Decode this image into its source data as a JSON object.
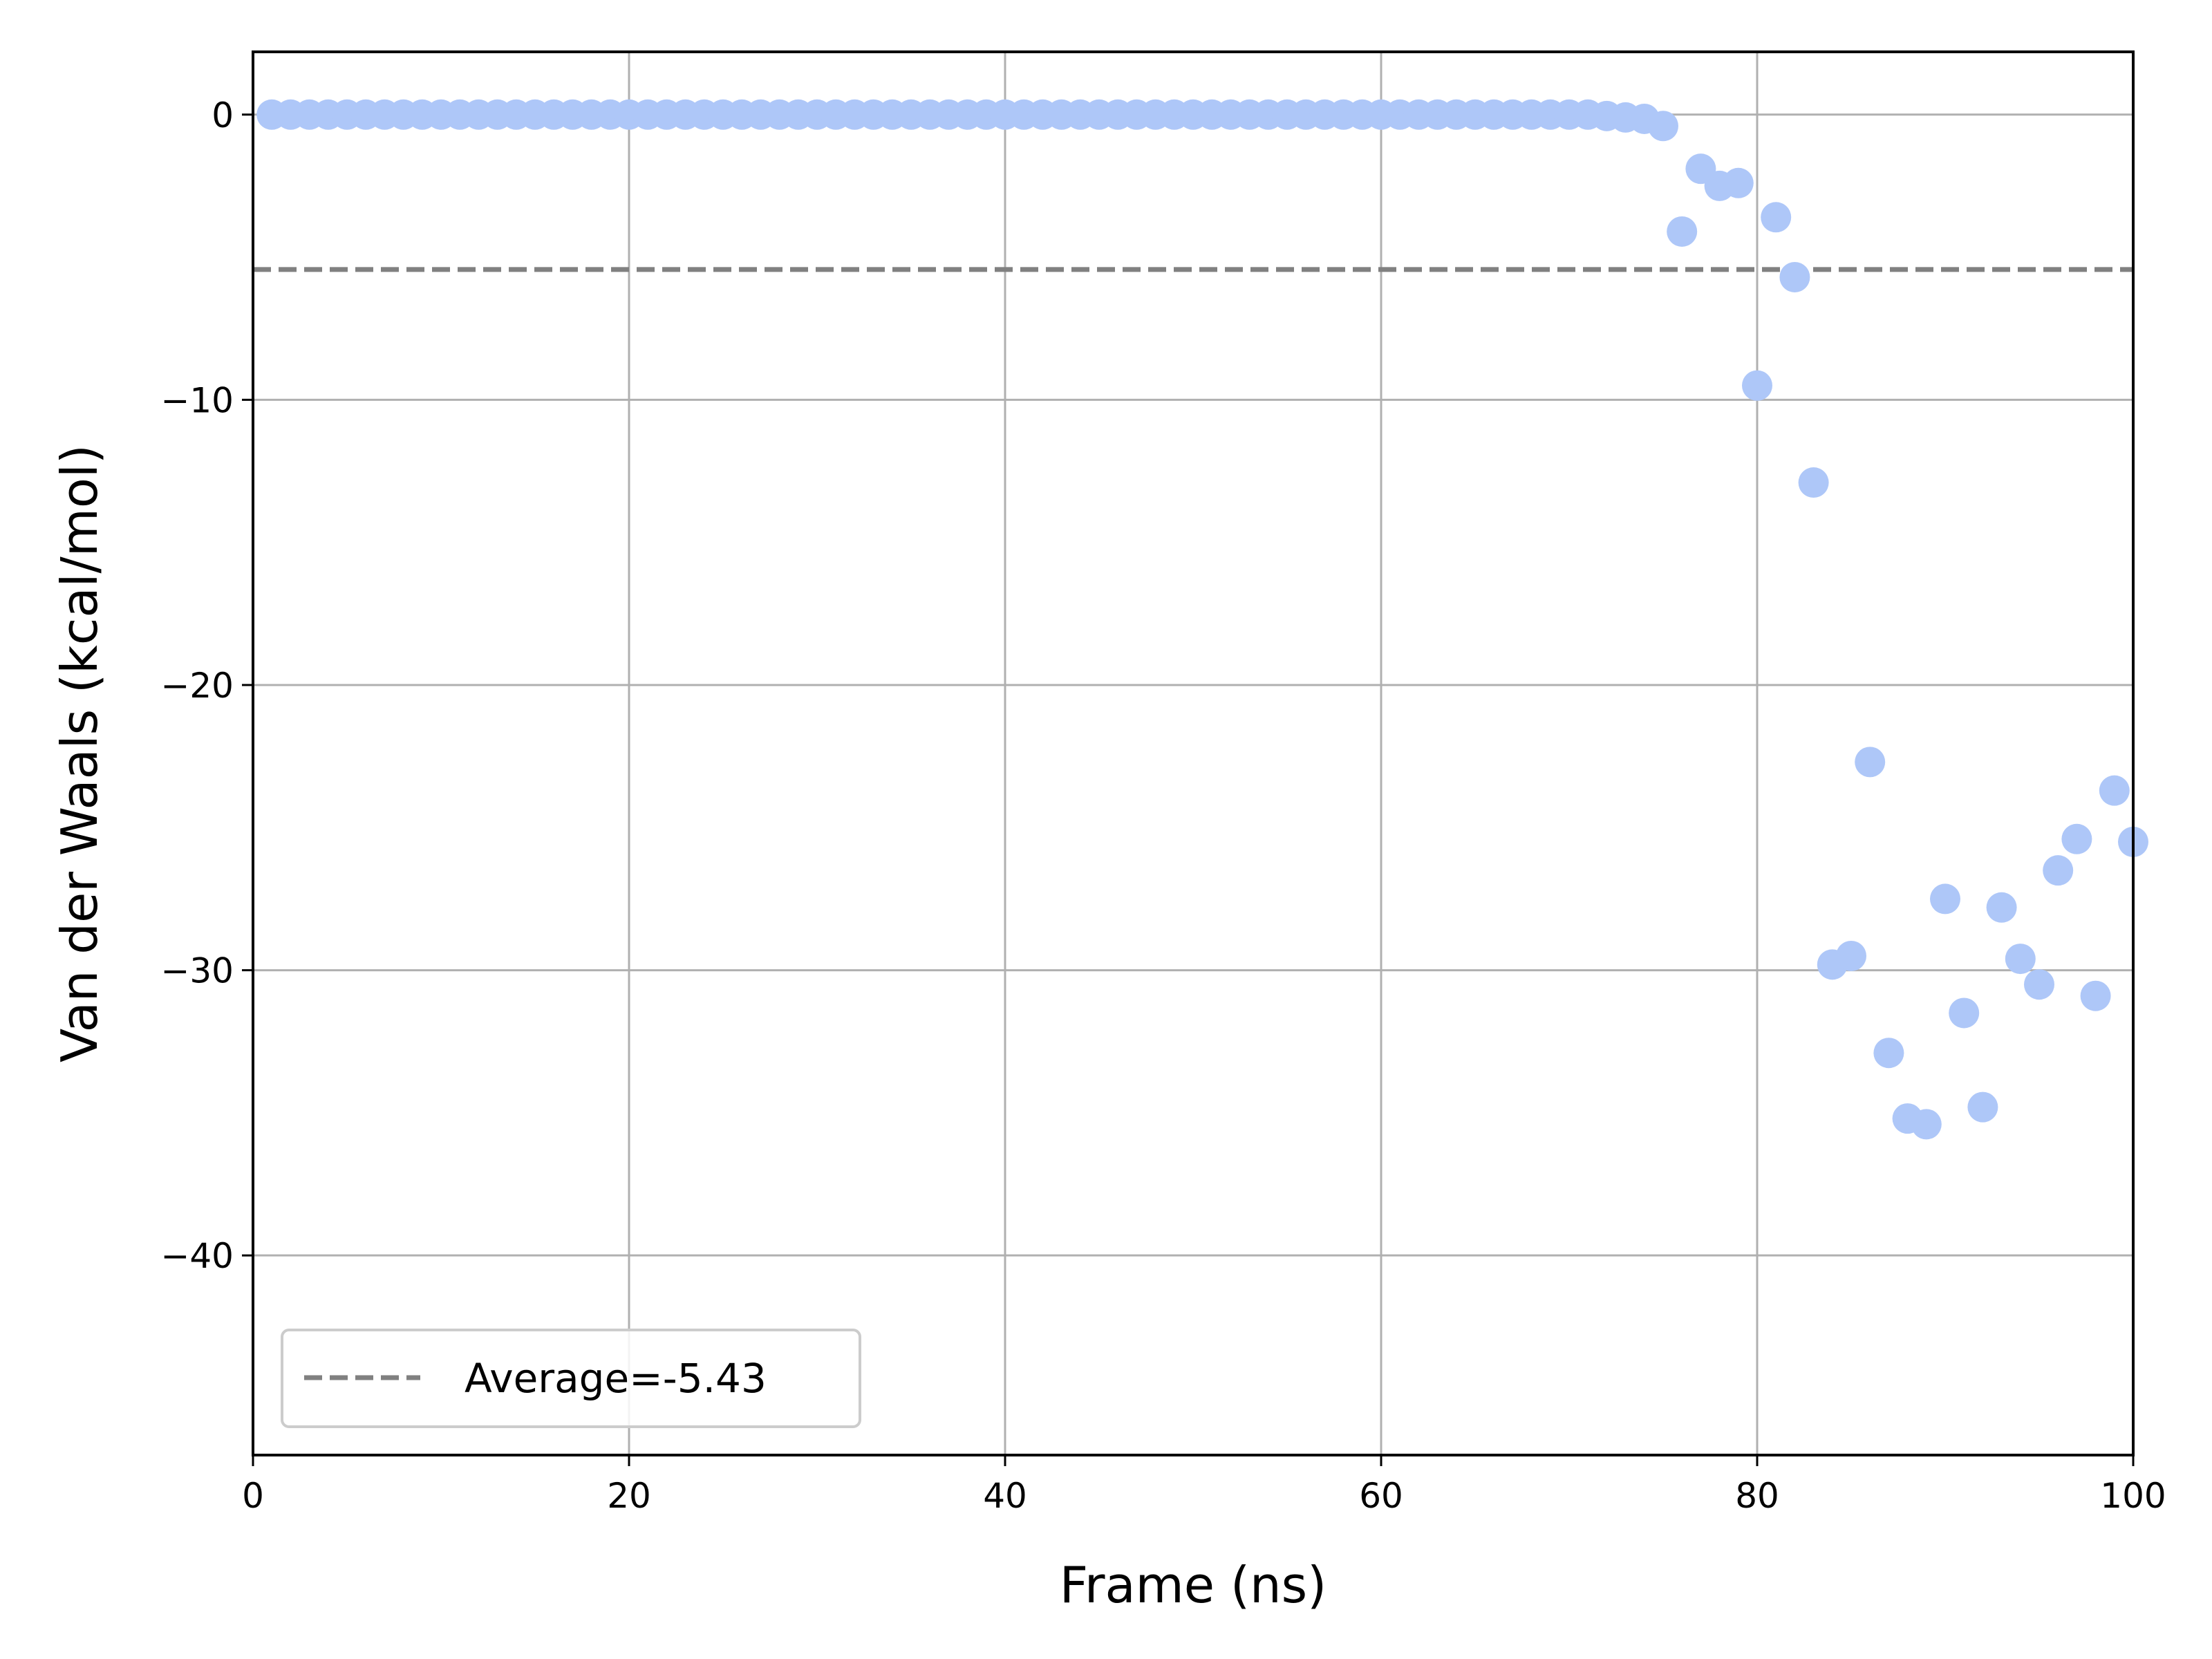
{
  "chart_data": {
    "type": "scatter",
    "xlabel": "Frame (ns)",
    "ylabel": "Van der Waals (kcal/mol)",
    "xlim": [
      0,
      100
    ],
    "ylim": [
      -47,
      2.2
    ],
    "xticks": [
      0,
      20,
      40,
      60,
      80,
      100
    ],
    "xtick_labels": [
      "0",
      "20",
      "40",
      "60",
      "80",
      "100"
    ],
    "yticks": [
      0,
      -10,
      -20,
      -30,
      -40
    ],
    "ytick_labels": [
      "0",
      "−10",
      "−20",
      "−30",
      "−40"
    ],
    "grid": true,
    "legend_position": "lower-left",
    "legend_label": "Average=-5.43",
    "average": -5.43,
    "colors": {
      "points": "#aec7f8",
      "average_line": "#808080",
      "grid": "#b0b0b0"
    },
    "series": [
      {
        "x": [
          1,
          2,
          3,
          4,
          5,
          6,
          7,
          8,
          9,
          10,
          11,
          12,
          13,
          14,
          15,
          16,
          17,
          18,
          19,
          20,
          21,
          22,
          23,
          24,
          25,
          26,
          27,
          28,
          29,
          30,
          31,
          32,
          33,
          34,
          35,
          36,
          37,
          38,
          39,
          40,
          41,
          42,
          43,
          44,
          45,
          46,
          47,
          48,
          49,
          50,
          51,
          52,
          53,
          54,
          55,
          56,
          57,
          58,
          59,
          60,
          61,
          62,
          63,
          64,
          65,
          66,
          67,
          68,
          69,
          70,
          71,
          72,
          73,
          74,
          75,
          76,
          77,
          78,
          79,
          80,
          81,
          82,
          83,
          84,
          85,
          86,
          87,
          88,
          89,
          90,
          91,
          92,
          93,
          94,
          95,
          96,
          97,
          98,
          99,
          100
        ],
        "y": [
          0,
          0,
          0,
          0,
          0,
          0,
          0,
          0,
          0,
          0,
          0,
          0,
          0,
          0,
          0,
          0,
          0,
          0,
          0,
          0,
          0,
          0,
          0,
          0,
          0,
          0,
          0,
          0,
          0,
          0,
          0,
          0,
          0,
          0,
          0,
          0,
          0,
          0,
          0,
          0,
          0,
          0,
          0,
          0,
          0,
          0,
          0,
          0,
          0,
          0,
          0,
          0,
          0,
          0,
          0,
          0,
          0,
          0,
          0,
          0,
          0,
          0,
          0,
          0,
          0,
          0,
          0,
          0,
          0,
          0,
          0,
          -0.05,
          -0.1,
          -0.15,
          -0.4,
          -4.1,
          -1.9,
          -2.5,
          -2.4,
          -9.5,
          -3.6,
          -5.7,
          -12.9,
          -29.8,
          -29.5,
          -22.7,
          -32.9,
          -35.2,
          -35.4,
          -27.5,
          -31.5,
          -34.8,
          -27.8,
          -29.6,
          -30.5,
          -26.5,
          -25.4,
          -30.9,
          -23.7,
          -25.5
        ]
      }
    ]
  }
}
